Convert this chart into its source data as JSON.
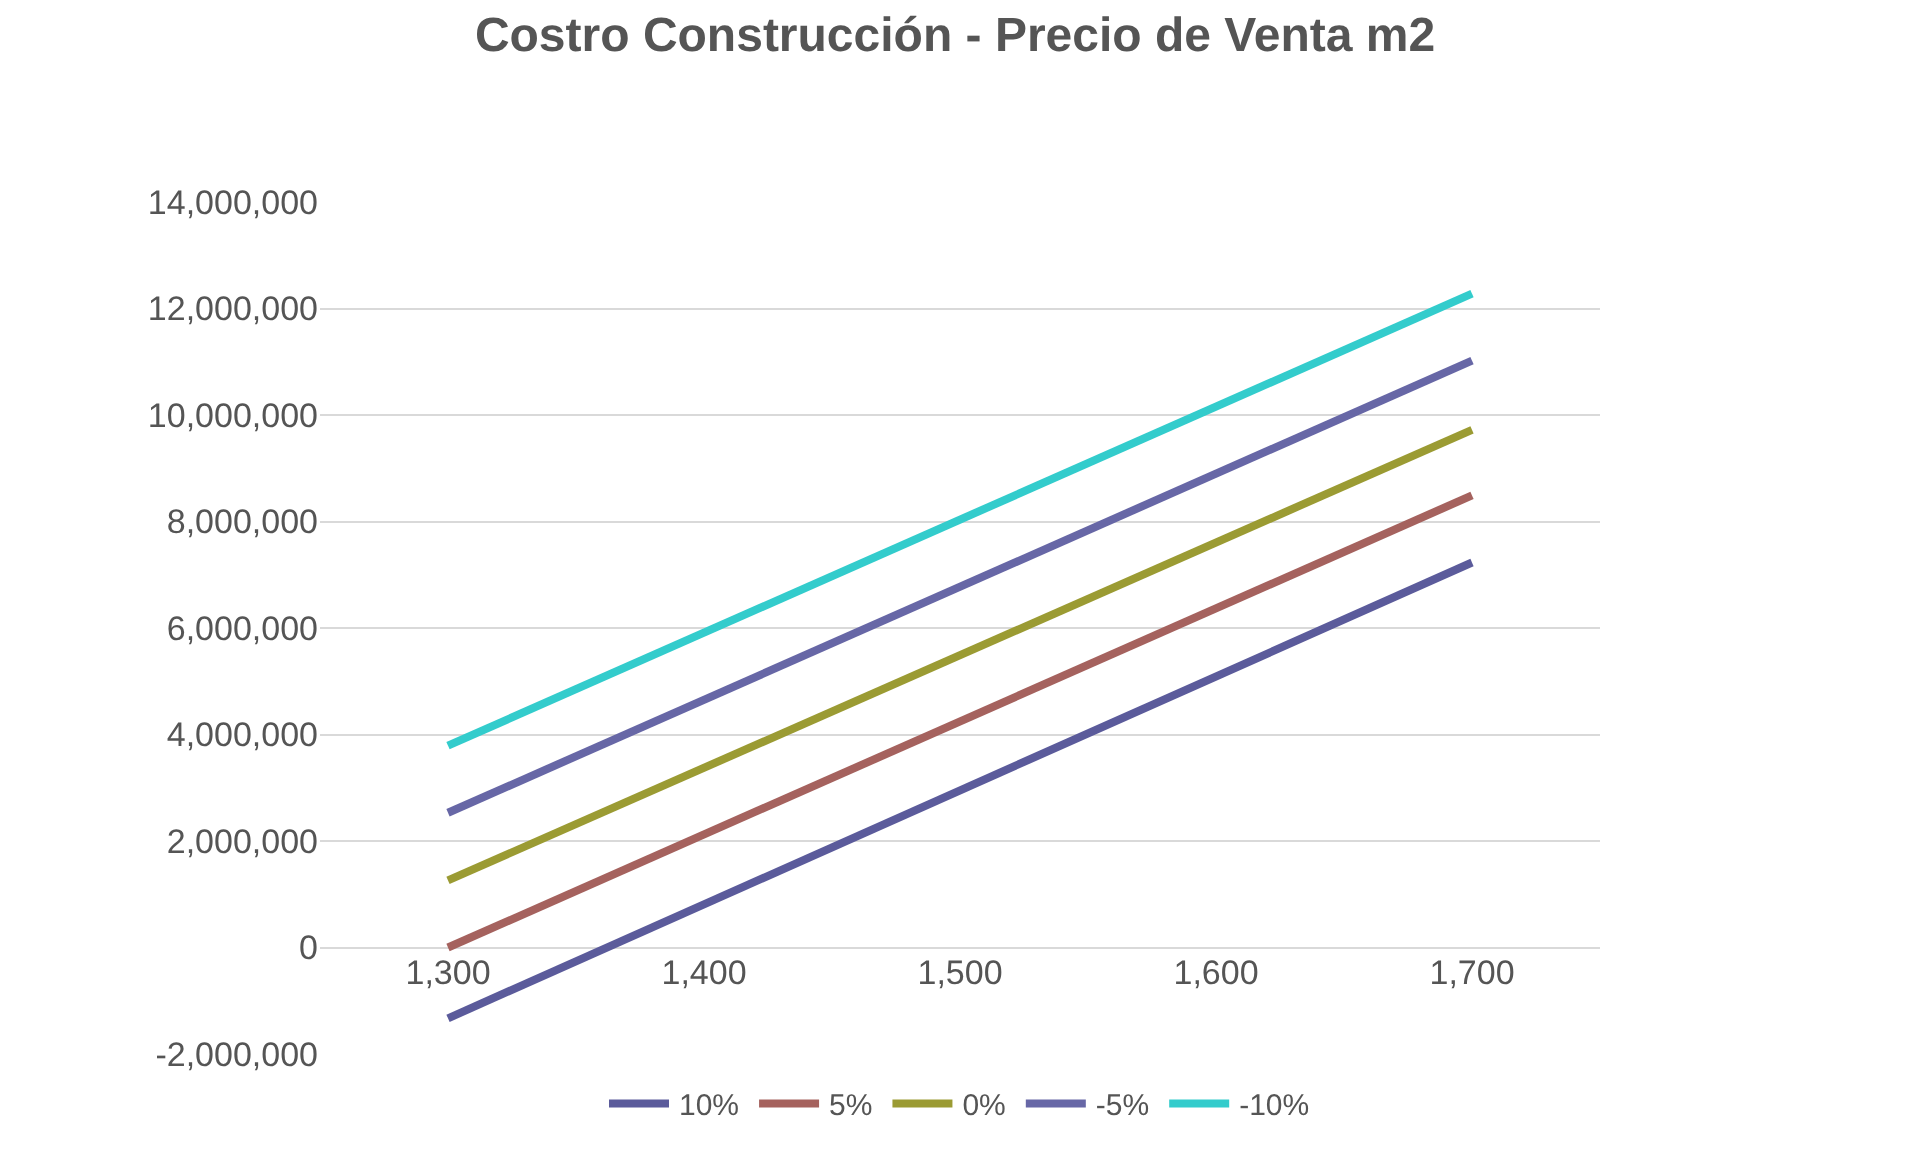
{
  "chart_data": {
    "type": "line",
    "title": "Costro Construcción - Precio de Venta m2",
    "x": [
      1300,
      1700
    ],
    "series": [
      {
        "name": "10%",
        "color": "#5b5b9b",
        "values": [
          -1330000,
          7230000
        ]
      },
      {
        "name": "5%",
        "color": "#a5625e",
        "values": [
          0,
          8490000
        ]
      },
      {
        "name": "0%",
        "color": "#9b9b33",
        "values": [
          1260000,
          9720000
        ]
      },
      {
        "name": "-5%",
        "color": "#6767a6",
        "values": [
          2530000,
          11020000
        ]
      },
      {
        "name": "-10%",
        "color": "#33cccc",
        "values": [
          3790000,
          12280000
        ]
      }
    ],
    "xlim": [
      1250,
      1750
    ],
    "xticks": [
      {
        "value": 1300,
        "label": "1,300"
      },
      {
        "value": 1400,
        "label": "1,400"
      },
      {
        "value": 1500,
        "label": "1,500"
      },
      {
        "value": 1600,
        "label": "1,600"
      },
      {
        "value": 1700,
        "label": "1,700"
      }
    ],
    "ylim": [
      -2000000,
      14000000
    ],
    "yticks": [
      {
        "value": -2000000,
        "label": "-2,000,000"
      },
      {
        "value": 0,
        "label": "0"
      },
      {
        "value": 2000000,
        "label": "2,000,000"
      },
      {
        "value": 4000000,
        "label": "4,000,000"
      },
      {
        "value": 6000000,
        "label": "6,000,000"
      },
      {
        "value": 8000000,
        "label": "8,000,000"
      },
      {
        "value": 10000000,
        "label": "10,000,000"
      },
      {
        "value": 12000000,
        "label": "12,000,000"
      },
      {
        "value": 14000000,
        "label": "14,000,000"
      }
    ],
    "grid": "y",
    "legend": "bottom",
    "marker": "none",
    "line_style": "solid"
  }
}
